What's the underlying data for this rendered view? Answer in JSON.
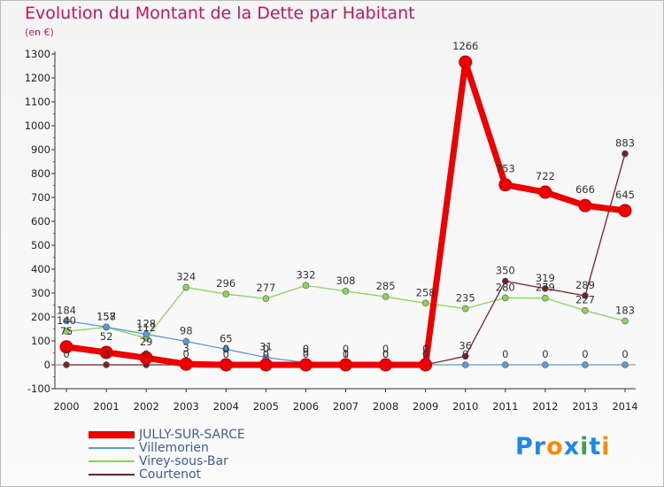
{
  "title": "Evolution du Montant de la Dette par Habitant",
  "subtitle": "(en €)",
  "logo": {
    "text": "Proxiti",
    "letters": [
      "P",
      "r",
      "o",
      "x",
      "i",
      "t",
      "i"
    ],
    "colors": [
      "#1e88e5",
      "#1e88e5",
      "#fb8c00",
      "#1e88e5",
      "#43a047",
      "#1e88e5",
      "#fb8c00"
    ]
  },
  "chart_data": {
    "type": "line",
    "title": "Evolution du Montant de la Dette par Habitant",
    "ylabel": "(en €)",
    "xlabel": "",
    "ylim": [
      -100,
      1300
    ],
    "yticks": [
      -100,
      0,
      100,
      200,
      300,
      400,
      500,
      600,
      700,
      800,
      900,
      1000,
      1100,
      1200,
      1300
    ],
    "grid": false,
    "legend_position": "bottom-left",
    "x": [
      "2000",
      "2001",
      "2002",
      "2003",
      "2004",
      "2005",
      "2006",
      "2007",
      "2008",
      "2009",
      "2010",
      "2011",
      "2012",
      "2013",
      "2014"
    ],
    "series": [
      {
        "name": "JULLY-SUR-SARCE",
        "color": "#ee0000",
        "values": [
          75,
          52,
          29,
          3,
          0,
          0,
          0,
          0,
          0,
          0,
          1266,
          753,
          722,
          666,
          645
        ]
      },
      {
        "name": "Villemorien",
        "color": "#5b9bd5",
        "values": [
          184,
          158,
          128,
          98,
          65,
          31,
          9,
          1,
          0,
          0,
          0,
          0,
          0,
          0,
          0
        ]
      },
      {
        "name": "Virey-sous-Bar",
        "color": "#8bd45a",
        "values": [
          140,
          157,
          112,
          324,
          296,
          277,
          332,
          308,
          285,
          258,
          235,
          280,
          279,
          227,
          183
        ]
      },
      {
        "name": "Courtenot",
        "color": "#7b1f28",
        "values": [
          0,
          0,
          0,
          0,
          0,
          0,
          0,
          0,
          0,
          0,
          36,
          350,
          319,
          289,
          883
        ]
      }
    ]
  }
}
